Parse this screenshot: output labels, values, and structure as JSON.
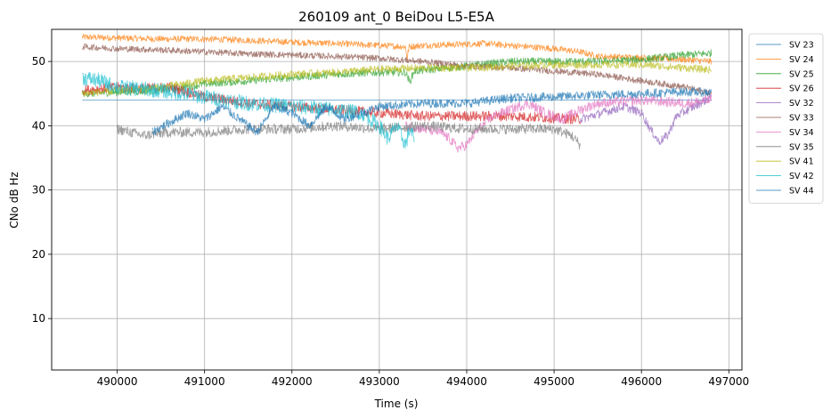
{
  "chart_data": {
    "type": "line",
    "title": "260109 ant_0 BeiDou L5-E5A",
    "xlabel": "Time (s)",
    "ylabel": "CNo dB Hz",
    "xlim": [
      489250,
      497150
    ],
    "ylim": [
      2,
      55
    ],
    "xticks": [
      490000,
      491000,
      492000,
      493000,
      494000,
      495000,
      496000,
      497000
    ],
    "yticks": [
      10,
      20,
      30,
      40,
      50
    ],
    "grid": true,
    "legend_position": "right-outside",
    "series": [
      {
        "name": "SV 23",
        "color": "#1f77b4",
        "x": [
          489600,
          496800
        ],
        "y": [
          44.0,
          44.0
        ],
        "noise": 0
      },
      {
        "name": "SV 24",
        "color": "#ff7f0e",
        "x": [
          489600,
          490500,
          491000,
          491500,
          492000,
          492500,
          493000,
          493300,
          493320,
          493340,
          493500,
          494000,
          494200,
          494500,
          495000,
          495300,
          495500,
          496000,
          496500,
          496800
        ],
        "y": [
          53.8,
          53.5,
          53.5,
          53.3,
          53.0,
          52.8,
          52.5,
          52.3,
          50.5,
          52.3,
          52.5,
          52.7,
          52.8,
          52.5,
          52.0,
          51.5,
          50.8,
          50.6,
          50.3,
          50.0
        ],
        "noise": 0.5
      },
      {
        "name": "SV 25",
        "color": "#2ca02c",
        "x": [
          489600,
          490500,
          491000,
          491500,
          492000,
          492500,
          493000,
          493300,
          493350,
          493400,
          494000,
          494500,
          495000,
          495500,
          496000,
          496500,
          496800
        ],
        "y": [
          45.0,
          45.5,
          46.5,
          47.0,
          47.5,
          48.0,
          48.3,
          48.3,
          46.8,
          48.5,
          49.3,
          50.0,
          50.0,
          50.0,
          50.3,
          51.0,
          51.3
        ],
        "noise": 0.6
      },
      {
        "name": "SV 26",
        "color": "#d62728",
        "x": [
          489600,
          490000,
          490300,
          490600,
          491000,
          491500,
          492000,
          492500,
          493000,
          493500,
          494000,
          494500,
          495000,
          495300
        ],
        "y": [
          45.5,
          46.0,
          45.8,
          46.0,
          44.5,
          43.5,
          43.0,
          42.5,
          42.0,
          41.5,
          41.5,
          41.5,
          41.2,
          41.0
        ],
        "noise": 0.8
      },
      {
        "name": "SV 32",
        "color": "#9467bd",
        "x": [
          495300,
          495800,
          496000,
          496100,
          496200,
          496300,
          496400,
          496600,
          496800
        ],
        "y": [
          41.0,
          43.0,
          42.0,
          39.5,
          37.5,
          38.5,
          41.5,
          43.0,
          44.5
        ],
        "noise": 0.7
      },
      {
        "name": "SV 33",
        "color": "#8c564b",
        "x": [
          489600,
          490000,
          490500,
          491000,
          491500,
          492000,
          492500,
          493000,
          493500,
          494000,
          494500,
          495000,
          495500,
          496000,
          496500,
          496800
        ],
        "y": [
          52.3,
          52.0,
          51.8,
          51.5,
          51.2,
          51.0,
          50.8,
          50.5,
          50.0,
          49.3,
          49.0,
          48.5,
          48.0,
          47.0,
          46.0,
          45.0
        ],
        "noise": 0.5
      },
      {
        "name": "SV 34",
        "color": "#e377c2",
        "x": [
          493300,
          493500,
          493700,
          493800,
          493900,
          494000,
          494100,
          494300,
          494500,
          494700,
          494900,
          495100,
          495300,
          495500,
          496000,
          496500,
          496800
        ],
        "y": [
          40.0,
          39.5,
          39.0,
          38.0,
          36.5,
          37.0,
          39.0,
          41.5,
          42.5,
          43.5,
          42.0,
          41.0,
          42.5,
          43.5,
          44.0,
          43.5,
          44.0
        ],
        "noise": 0.8
      },
      {
        "name": "SV 35",
        "color": "#7f7f7f",
        "x": [
          490000,
          490300,
          490600,
          491000,
          491500,
          492000,
          492500,
          493000,
          493500,
          494000,
          494500,
          495000,
          495200,
          495300
        ],
        "y": [
          39.5,
          38.5,
          39.0,
          39.0,
          39.5,
          39.5,
          40.0,
          39.5,
          40.0,
          39.5,
          39.5,
          39.5,
          38.5,
          37.0
        ],
        "noise": 0.8
      },
      {
        "name": "SV 41",
        "color": "#bcbd22",
        "x": [
          489600,
          490500,
          491000,
          491500,
          492000,
          492500,
          493000,
          493500,
          494000,
          494500,
          495000,
          495500,
          496000,
          496500,
          496800
        ],
        "y": [
          45.0,
          46.0,
          47.0,
          47.5,
          48.0,
          48.3,
          48.8,
          49.0,
          49.0,
          49.3,
          49.5,
          49.5,
          49.5,
          49.0,
          48.7
        ],
        "noise": 0.6
      },
      {
        "name": "SV 42",
        "color": "#17becf",
        "x": [
          489600,
          489800,
          490000,
          490500,
          491000,
          491500,
          492000,
          492500,
          492800,
          493000,
          493100,
          493200,
          493300,
          493350,
          493400
        ],
        "y": [
          47.5,
          47.0,
          46.0,
          45.5,
          44.5,
          43.5,
          43.0,
          42.5,
          42.0,
          40.0,
          38.0,
          40.0,
          37.0,
          39.5,
          38.0
        ],
        "noise": 1.2
      },
      {
        "name": "SV 44",
        "color": "#1f77b4",
        "x": [
          490400,
          490600,
          490800,
          491000,
          491200,
          491400,
          491600,
          491800,
          492000,
          492200,
          492400,
          492600,
          492800,
          493000,
          493500,
          494000,
          494500,
          495000,
          495500,
          496000,
          496500,
          496800
        ],
        "y": [
          39.0,
          40.5,
          42.0,
          41.0,
          43.0,
          41.0,
          39.0,
          43.0,
          42.0,
          40.0,
          43.0,
          41.0,
          42.0,
          43.0,
          43.5,
          43.5,
          44.3,
          44.5,
          44.8,
          45.0,
          45.3,
          45.2
        ],
        "noise": 0.7
      }
    ]
  }
}
